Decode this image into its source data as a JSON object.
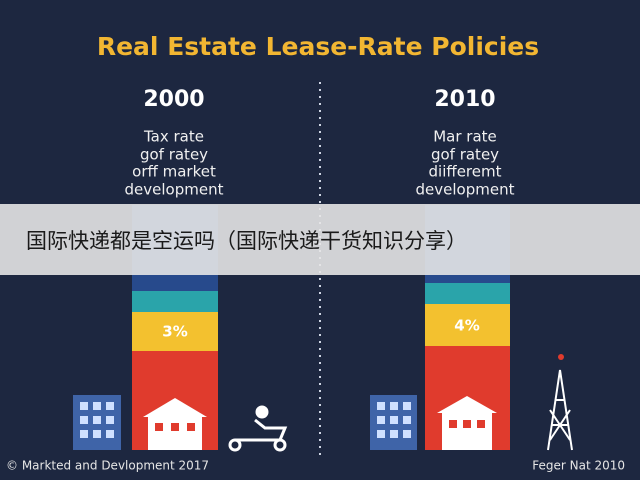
{
  "title": "Real Estate Lease-Rate Policies",
  "columns": [
    {
      "year": "2000",
      "description": [
        "Tax rate",
        "gof ratey",
        "orff market",
        "development"
      ],
      "label": "3%"
    },
    {
      "year": "2010",
      "description": [
        "Mar rate",
        "gof ratey",
        "diifferemt",
        "development"
      ],
      "label": "4%"
    }
  ],
  "banner": "国际快递都是空运吗（国际快递干货知识分享）",
  "footer": {
    "left": "© Markted and Devlopment 2017",
    "right": "Feger Nat 2010"
  }
}
